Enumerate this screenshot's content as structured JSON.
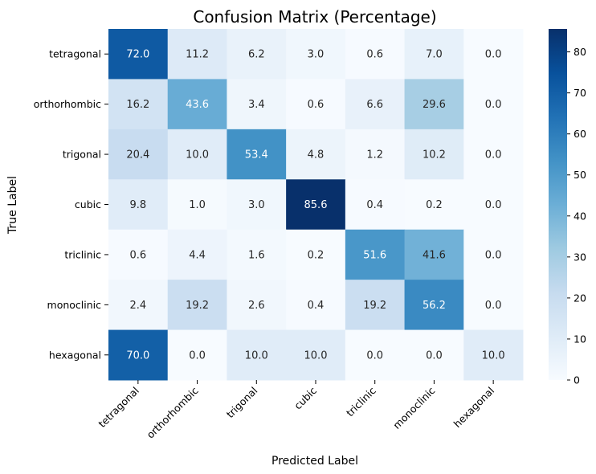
{
  "chart_data": {
    "type": "heatmap",
    "title": "Confusion Matrix (Percentage)",
    "xlabel": "Predicted Label",
    "ylabel": "True Label",
    "x_categories": [
      "tetragonal",
      "orthorhombic",
      "trigonal",
      "cubic",
      "triclinic",
      "monoclinic",
      "hexagonal"
    ],
    "y_categories": [
      "tetragonal",
      "orthorhombic",
      "trigonal",
      "cubic",
      "triclinic",
      "monoclinic",
      "hexagonal"
    ],
    "values": [
      [
        72.0,
        11.2,
        6.2,
        3.0,
        0.6,
        7.0,
        0.0
      ],
      [
        16.2,
        43.6,
        3.4,
        0.6,
        6.6,
        29.6,
        0.0
      ],
      [
        20.4,
        10.0,
        53.4,
        4.8,
        1.2,
        10.2,
        0.0
      ],
      [
        9.8,
        1.0,
        3.0,
        85.6,
        0.4,
        0.2,
        0.0
      ],
      [
        0.6,
        4.4,
        1.6,
        0.2,
        51.6,
        41.6,
        0.0
      ],
      [
        2.4,
        19.2,
        2.6,
        0.4,
        19.2,
        56.2,
        0.0
      ],
      [
        70.0,
        0.0,
        10.0,
        10.0,
        0.0,
        0.0,
        10.0
      ]
    ],
    "colorscale": "Blues",
    "color_range": [
      0,
      85.6
    ],
    "colorbar_ticks": [
      0,
      10,
      20,
      30,
      40,
      50,
      60,
      70,
      80
    ]
  }
}
